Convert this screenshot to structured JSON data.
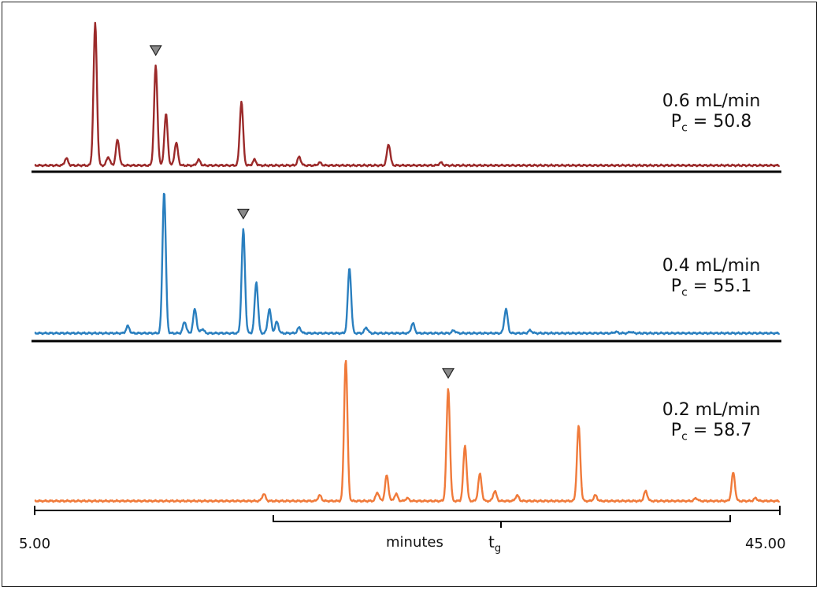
{
  "chart_data": {
    "type": "line",
    "x_axis": {
      "range": [
        5.0,
        45.0
      ],
      "tick_start_label": "5.00",
      "tick_end_label": "45.00",
      "label": "minutes",
      "marker_label_main": "t",
      "marker_label_sub": "g"
    },
    "panels": [
      {
        "flow_rate": "0.6 mL/min",
        "pc_label": "P",
        "pc_sub": "c",
        "pc_value": "= 50.8",
        "color": "#9b2a2a",
        "marked_peak_time": 11.5,
        "peaks": [
          {
            "t": 6.7,
            "h": 0.05
          },
          {
            "t": 8.25,
            "h": 1.0
          },
          {
            "t": 8.95,
            "h": 0.06
          },
          {
            "t": 9.45,
            "h": 0.18
          },
          {
            "t": 11.5,
            "h": 0.7
          },
          {
            "t": 12.05,
            "h": 0.36
          },
          {
            "t": 12.6,
            "h": 0.16
          },
          {
            "t": 13.8,
            "h": 0.04
          },
          {
            "t": 16.1,
            "h": 0.45
          },
          {
            "t": 16.8,
            "h": 0.04
          },
          {
            "t": 19.2,
            "h": 0.06
          },
          {
            "t": 20.3,
            "h": 0.02
          },
          {
            "t": 24.0,
            "h": 0.15
          },
          {
            "t": 26.8,
            "h": 0.02
          }
        ]
      },
      {
        "flow_rate": "0.4 mL/min",
        "pc_label": "P",
        "pc_sub": "c",
        "pc_value": "= 55.1",
        "color": "#2a7fbf",
        "marked_peak_time": 16.2,
        "peaks": [
          {
            "t": 10.0,
            "h": 0.05
          },
          {
            "t": 11.95,
            "h": 1.0
          },
          {
            "t": 13.05,
            "h": 0.08
          },
          {
            "t": 13.6,
            "h": 0.17
          },
          {
            "t": 14.0,
            "h": 0.03
          },
          {
            "t": 16.2,
            "h": 0.73
          },
          {
            "t": 16.9,
            "h": 0.36
          },
          {
            "t": 17.6,
            "h": 0.17
          },
          {
            "t": 18.0,
            "h": 0.08
          },
          {
            "t": 19.2,
            "h": 0.04
          },
          {
            "t": 21.9,
            "h": 0.46
          },
          {
            "t": 22.8,
            "h": 0.04
          },
          {
            "t": 25.3,
            "h": 0.07
          },
          {
            "t": 27.5,
            "h": 0.02
          },
          {
            "t": 30.3,
            "h": 0.17
          },
          {
            "t": 31.6,
            "h": 0.02
          },
          {
            "t": 36.2,
            "h": 0.01
          },
          {
            "t": 37.0,
            "h": 0.01
          }
        ]
      },
      {
        "flow_rate": "0.2 mL/min",
        "pc_label": "P",
        "pc_sub": "c",
        "pc_value": "= 58.7",
        "color": "#f07a3a",
        "marked_peak_time": 27.2,
        "peaks": [
          {
            "t": 17.3,
            "h": 0.05
          },
          {
            "t": 20.3,
            "h": 0.04
          },
          {
            "t": 21.7,
            "h": 1.0
          },
          {
            "t": 23.4,
            "h": 0.06
          },
          {
            "t": 23.9,
            "h": 0.18
          },
          {
            "t": 24.4,
            "h": 0.05
          },
          {
            "t": 25.0,
            "h": 0.02
          },
          {
            "t": 27.2,
            "h": 0.79
          },
          {
            "t": 28.1,
            "h": 0.39
          },
          {
            "t": 28.9,
            "h": 0.19
          },
          {
            "t": 29.7,
            "h": 0.07
          },
          {
            "t": 30.9,
            "h": 0.04
          },
          {
            "t": 34.2,
            "h": 0.53
          },
          {
            "t": 35.1,
            "h": 0.04
          },
          {
            "t": 37.8,
            "h": 0.07
          },
          {
            "t": 40.5,
            "h": 0.02
          },
          {
            "t": 42.5,
            "h": 0.2
          },
          {
            "t": 43.7,
            "h": 0.02
          }
        ]
      }
    ]
  }
}
